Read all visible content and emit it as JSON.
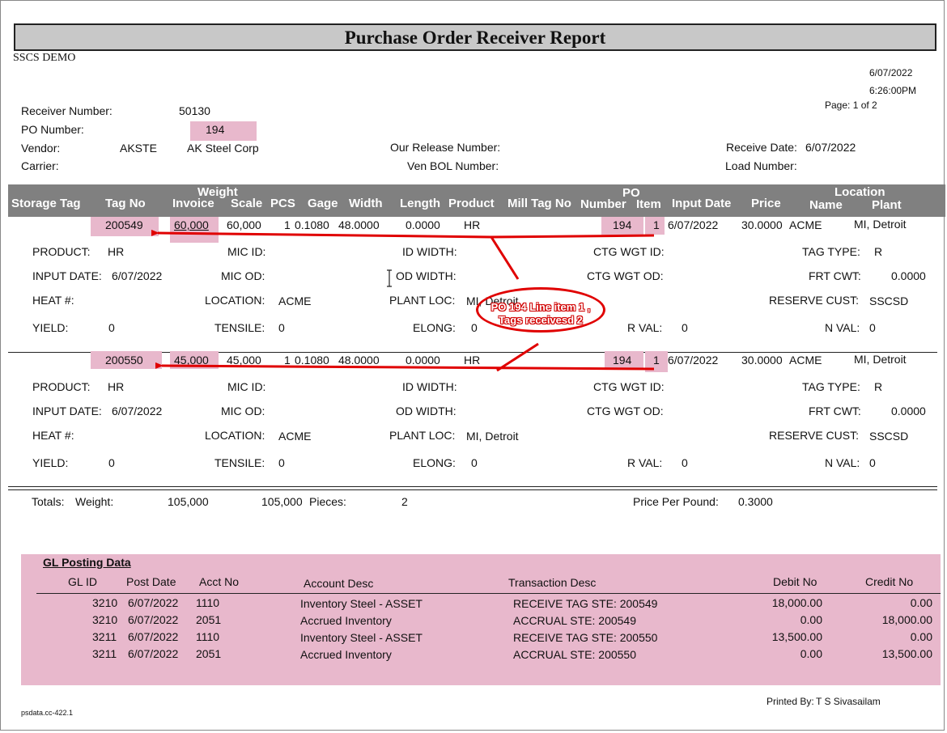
{
  "report": {
    "title": "Purchase Order Receiver Report",
    "company": "SSCS DEMO",
    "date": "6/07/2022",
    "time": "6:26:00PM",
    "page": "Page: 1 of 2"
  },
  "header": {
    "receiver_number_label": "Receiver Number:",
    "receiver_number": "50130",
    "po_number_label": "PO Number:",
    "po_number": "194",
    "vendor_label": "Vendor:",
    "vendor_code": "AKSTE",
    "vendor_name": "AK Steel Corp",
    "carrier_label": "Carrier:",
    "our_release_label": "Our Release Number:",
    "ven_bol_label": "Ven BOL Number:",
    "receive_date_label": "Receive Date:",
    "receive_date": "6/07/2022",
    "load_number_label": "Load Number:"
  },
  "columns": {
    "storage_tag": "Storage Tag",
    "tag_no": "Tag No",
    "weight": "Weight",
    "invoice": "Invoice",
    "scale": "Scale",
    "pcs": "PCS",
    "gage": "Gage",
    "width": "Width",
    "length": "Length",
    "product": "Product",
    "mill_tag_no": "Mill Tag No",
    "po": "PO",
    "po_number": "Number",
    "po_item": "Item",
    "input_date": "Input Date",
    "price": "Price",
    "location": "Location",
    "loc_name": "Name",
    "loc_plant": "Plant"
  },
  "detail_labels": {
    "product": "PRODUCT:",
    "mic_id": "MIC ID:",
    "id_width": "ID WIDTH:",
    "ctg_wgt_id": "CTG WGT ID:",
    "tag_type": "TAG TYPE:",
    "input_date": "INPUT DATE:",
    "mic_od": "MIC OD:",
    "od_width": "OD WIDTH:",
    "ctg_wgt_od": "CTG WGT OD:",
    "frt_cwt": "FRT CWT:",
    "heat": "HEAT #:",
    "location": "LOCATION:",
    "plant_loc": "PLANT LOC:",
    "reserve_cust": "RESERVE CUST:",
    "yield": "YIELD:",
    "tensile": "TENSILE:",
    "elong": "ELONG:",
    "r_val": "R VAL:",
    "n_val": "N VAL:"
  },
  "tags": [
    {
      "tag_no": "200549",
      "invoice": "60,000",
      "scale": "60,000",
      "pcs": "1",
      "gage": "0.1080",
      "width": "48.0000",
      "length": "0.0000",
      "product": "HR",
      "po_number": "194",
      "po_item": "1",
      "input_date": "6/07/2022",
      "price": "30.0000",
      "loc_name": "ACME",
      "loc_plant": "MI, Detroit",
      "d_product": "HR",
      "d_tag_type": "R",
      "d_input_date": "6/07/2022",
      "d_frt_cwt": "0.0000",
      "d_location": "ACME",
      "d_plant_loc": "MI, Detroit",
      "d_reserve_cust": "SSCSD",
      "d_yield": "0",
      "d_tensile": "0",
      "d_elong": "0",
      "d_r_val": "0",
      "d_n_val": "0"
    },
    {
      "tag_no": "200550",
      "invoice": "45,000",
      "scale": "45,000",
      "pcs": "1",
      "gage": "0.1080",
      "width": "48.0000",
      "length": "0.0000",
      "product": "HR",
      "po_number": "194",
      "po_item": "1",
      "input_date": "6/07/2022",
      "price": "30.0000",
      "loc_name": "ACME",
      "loc_plant": "MI, Detroit",
      "d_product": "HR",
      "d_tag_type": "R",
      "d_input_date": "6/07/2022",
      "d_frt_cwt": "0.0000",
      "d_location": "ACME",
      "d_plant_loc": "MI, Detroit",
      "d_reserve_cust": "SSCSD",
      "d_yield": "0",
      "d_tensile": "0",
      "d_elong": "0",
      "d_r_val": "0",
      "d_n_val": "0"
    }
  ],
  "totals": {
    "label": "Totals:",
    "weight_label": "Weight:",
    "invoice_total": "105,000",
    "scale_total": "105,000",
    "pieces_label": "Pieces:",
    "pieces": "2",
    "price_per_pound_label": "Price Per Pound:",
    "price_per_pound": "0.3000"
  },
  "gl": {
    "title": "GL Posting Data",
    "headers": {
      "gl_id": "GL ID",
      "post_date": "Post Date",
      "acct_no": "Acct No",
      "account_desc": "Account Desc",
      "transaction_desc": "Transaction Desc",
      "debit_no": "Debit No",
      "credit_no": "Credit No"
    },
    "rows": [
      {
        "gl_id": "3210",
        "post_date": "6/07/2022",
        "acct_no": "1110",
        "account_desc": "Inventory Steel - ASSET",
        "transaction_desc": "RECEIVE TAG STE: 200549",
        "debit": "18,000.00",
        "credit": "0.00"
      },
      {
        "gl_id": "3210",
        "post_date": "6/07/2022",
        "acct_no": "2051",
        "account_desc": "Accrued Inventory",
        "transaction_desc": "ACCRUAL STE: 200549",
        "debit": "0.00",
        "credit": "18,000.00"
      },
      {
        "gl_id": "3211",
        "post_date": "6/07/2022",
        "acct_no": "1110",
        "account_desc": "Inventory Steel - ASSET",
        "transaction_desc": "RECEIVE TAG STE: 200550",
        "debit": "13,500.00",
        "credit": "0.00"
      },
      {
        "gl_id": "3211",
        "post_date": "6/07/2022",
        "acct_no": "2051",
        "account_desc": "Accrued Inventory",
        "transaction_desc": "ACCRUAL STE: 200550",
        "debit": "0.00",
        "credit": "13,500.00"
      }
    ]
  },
  "footer": {
    "printed_by_label": "Printed By:",
    "printed_by": "T S Sivasailam",
    "form_id": "psdata.cc-422.1"
  },
  "annotation": {
    "line1": "PO 194 Line item 1 ,",
    "line2": "Tags receivesd 2",
    "color": "#e00000"
  }
}
